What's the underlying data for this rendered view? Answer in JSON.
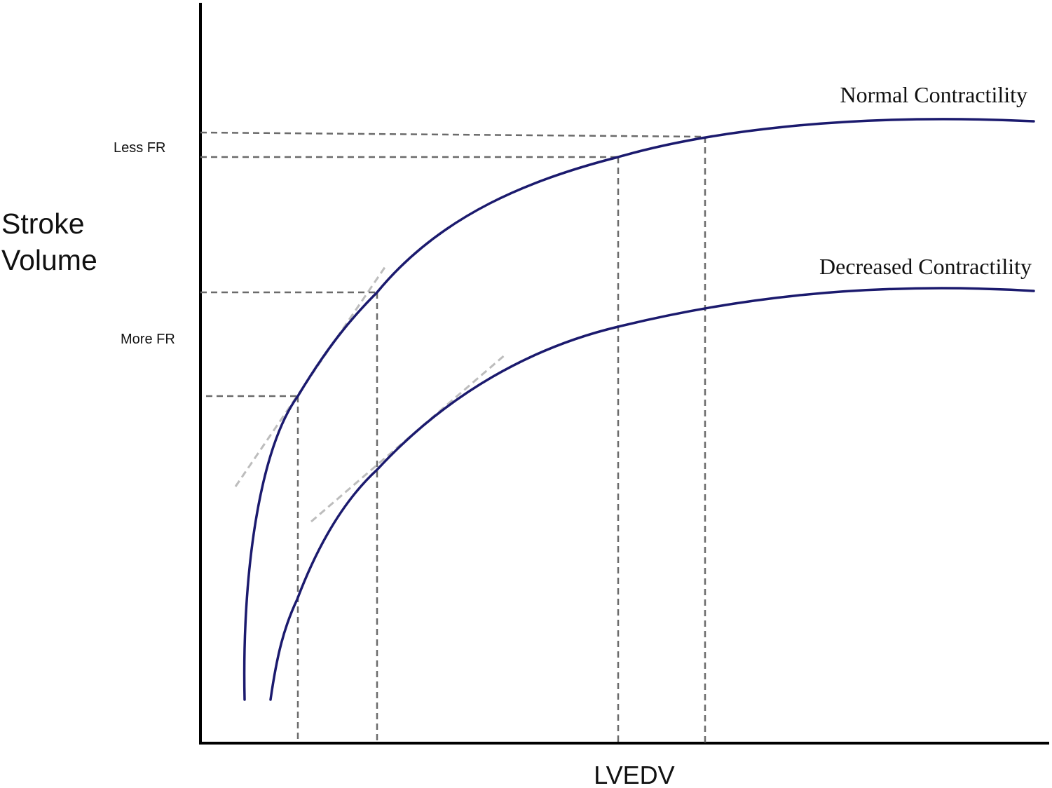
{
  "chart_data": {
    "type": "line",
    "xlabel": "LVEDV",
    "ylabel_lines": [
      "Stroke",
      "Volume"
    ],
    "grid": false,
    "y_annotations": [
      {
        "label": "Less FR",
        "level": "upper"
      },
      {
        "label": "More FR",
        "level": "lower"
      }
    ],
    "series": [
      {
        "name": "Normal Contractility",
        "color": "#1b1a6e"
      },
      {
        "name": "Decreased Contractility",
        "color": "#1b1a6e"
      }
    ],
    "colors": {
      "curve": "#1b1a6e",
      "guide": "#6b6b6b",
      "tangent": "#bdbdbd",
      "axis": "#000000"
    }
  }
}
